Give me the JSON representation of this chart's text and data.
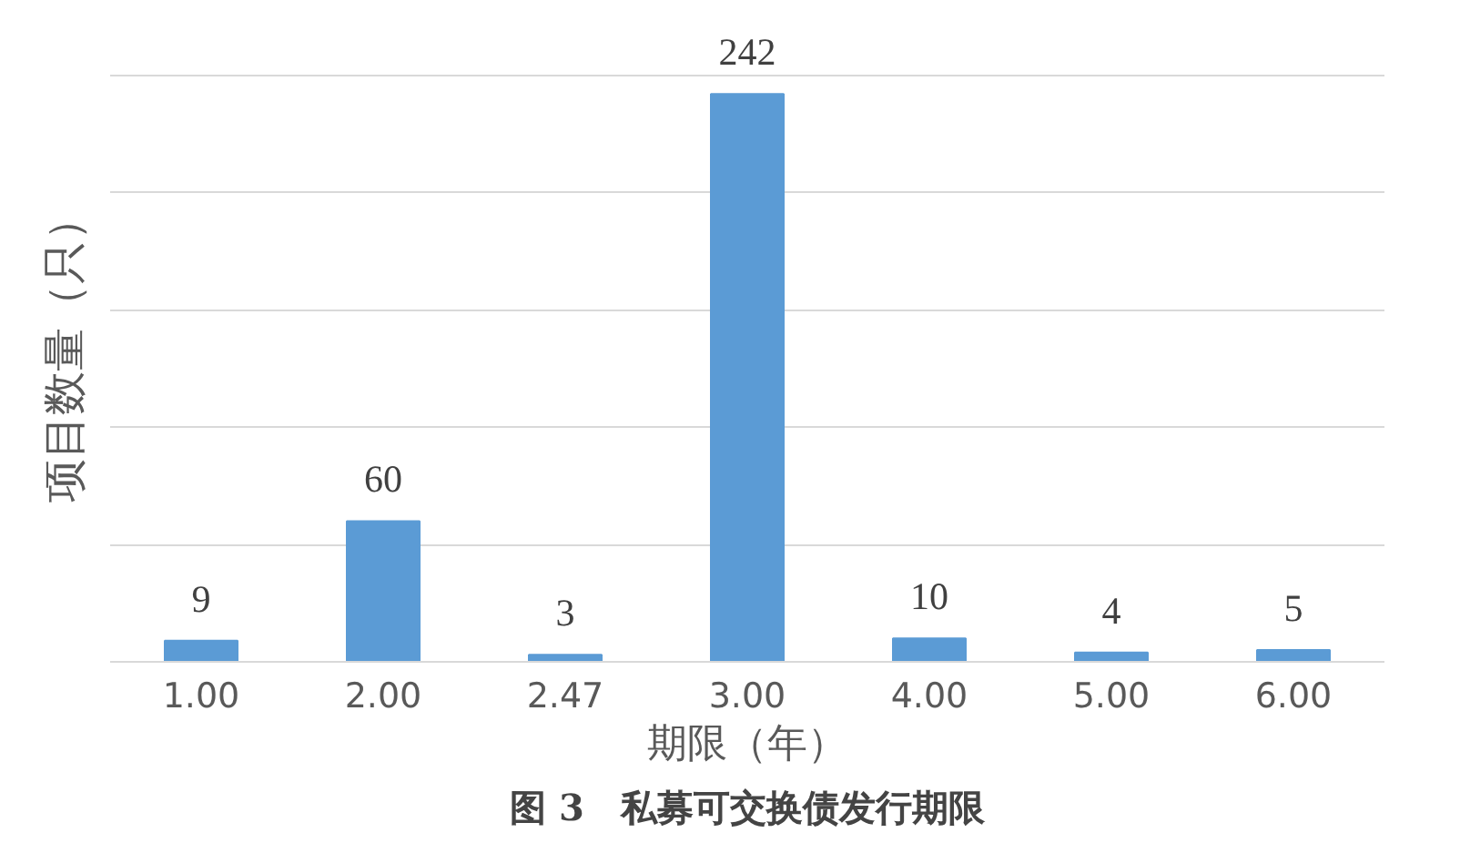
{
  "chart_data": {
    "type": "bar",
    "title": "图 3　私募可交换债发行期限",
    "xlabel": "期限（年）",
    "ylabel": "项目数量（只）",
    "categories": [
      "1.00",
      "2.00",
      "2.47",
      "3.00",
      "4.00",
      "5.00",
      "6.00"
    ],
    "values": [
      9,
      60,
      3,
      242,
      10,
      4,
      5
    ],
    "color": "#5b9bd5",
    "data_labels": true,
    "grid": "y",
    "tick_labels": "x"
  }
}
